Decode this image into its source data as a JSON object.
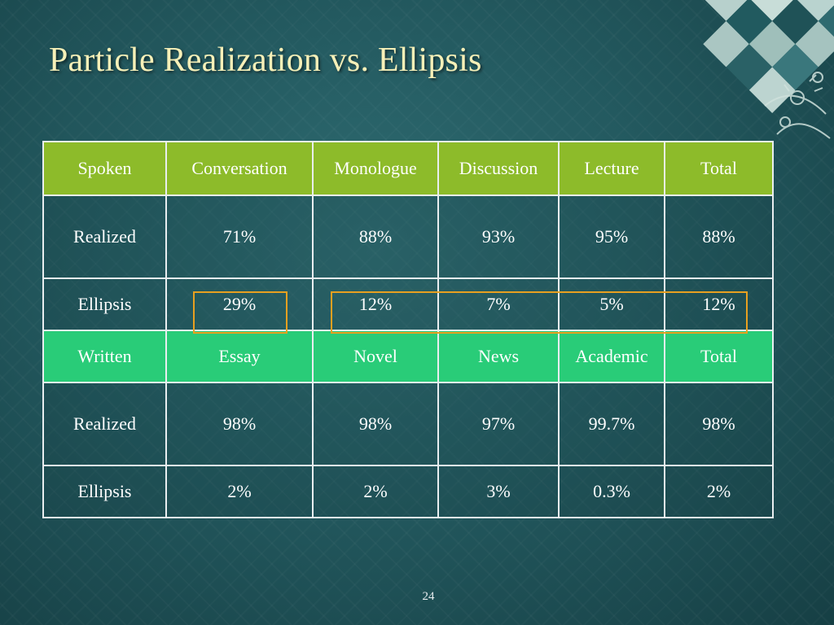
{
  "slide": {
    "title": "Particle Realization vs. Ellipsis",
    "page_number": "24"
  },
  "table": {
    "spoken_header": [
      "Spoken",
      "Conversation",
      "Monologue",
      "Discussion",
      "Lecture",
      "Total"
    ],
    "spoken_rows": [
      [
        "Realized",
        "71%",
        "88%",
        "93%",
        "95%",
        "88%"
      ],
      [
        "Ellipsis",
        "29%",
        "12%",
        "7%",
        "5%",
        "12%"
      ]
    ],
    "written_header": [
      "Written",
      "Essay",
      "Novel",
      "News",
      "Academic",
      "Total"
    ],
    "written_rows": [
      [
        "Realized",
        "98%",
        "98%",
        "97%",
        "99.7%",
        "98%"
      ],
      [
        "Ellipsis",
        "2%",
        "2%",
        "3%",
        "0.3%",
        "2%"
      ]
    ]
  },
  "colors": {
    "spoken_header_bg": "#8dbb2a",
    "written_header_bg": "#29cc78",
    "highlight_box": "#e8a020",
    "title_text": "#f6f0b8"
  }
}
